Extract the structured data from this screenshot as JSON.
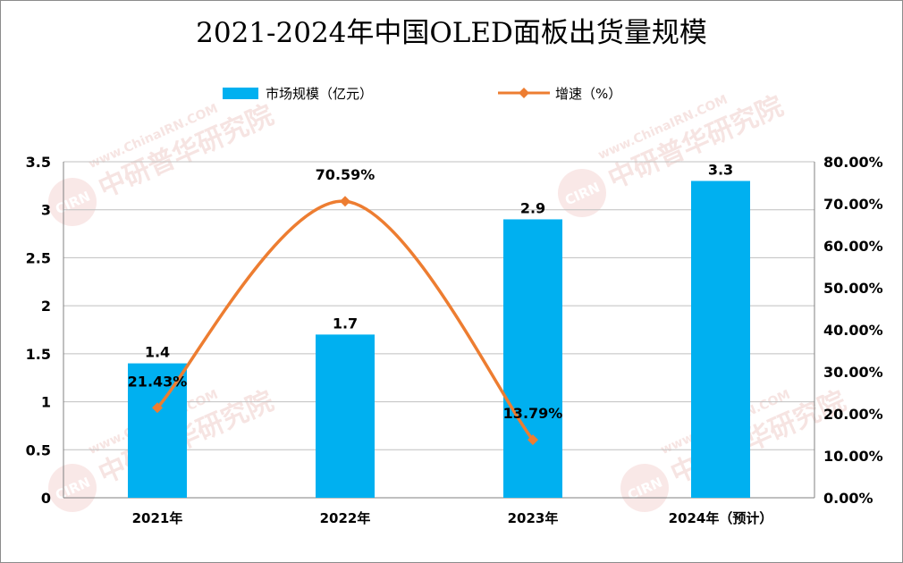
{
  "chart_data": {
    "type": "bar",
    "title": "2021-2024年中国OLED面板出货量规模",
    "categories": [
      "2021年",
      "2022年",
      "2023年",
      "2024年（预计）"
    ],
    "series": [
      {
        "name": "市场规模（亿元）",
        "type": "bar",
        "axis": "left",
        "values": [
          1.4,
          1.7,
          2.9,
          3.3
        ],
        "labels": [
          "1.4",
          "1.7",
          "2.9",
          "3.3"
        ],
        "color": "#00b0f0"
      },
      {
        "name": "增速（%）",
        "type": "line",
        "axis": "right",
        "values": [
          21.43,
          70.59,
          13.79,
          null
        ],
        "labels": [
          "21.43%",
          "70.59%",
          "13.79%",
          null
        ],
        "color": "#ed7d31"
      }
    ],
    "y_left": {
      "min": 0,
      "max": 3.5,
      "step": 0.5,
      "ticks": [
        "0",
        "0.5",
        "1",
        "1.5",
        "2",
        "2.5",
        "3",
        "3.5"
      ]
    },
    "y_right": {
      "min": 0,
      "max": 80,
      "step": 10,
      "ticks": [
        "0.00%",
        "10.00%",
        "20.00%",
        "30.00%",
        "40.00%",
        "50.00%",
        "60.00%",
        "70.00%",
        "80.00%"
      ]
    },
    "grid": true,
    "legend_position": "top"
  },
  "watermark": {
    "url_text": "www.ChinaIRN.COM",
    "brand_text": "中研普华研究院",
    "logo_text": "CIRN"
  },
  "colors": {
    "bar": "#00b0f0",
    "line": "#ed7d31",
    "grid": "#bfbfbf",
    "axis": "#808080"
  }
}
